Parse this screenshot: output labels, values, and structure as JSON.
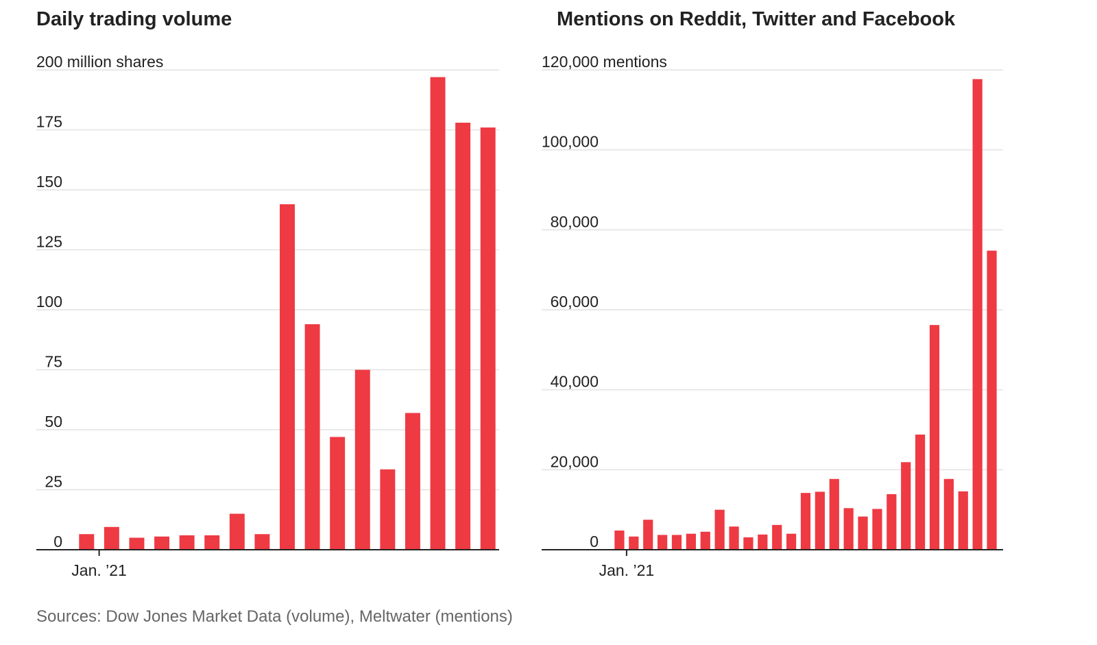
{
  "source_note": "Sources: Dow Jones Market Data (volume), Meltwater (mentions)",
  "colors": {
    "bar": "#ee3a43",
    "grid": "#e2e2e2",
    "axis": "#222222",
    "text": "#222222",
    "source": "#666666"
  },
  "chart_data": [
    {
      "type": "bar",
      "title": "Daily trading volume",
      "unit_label": "200 million shares",
      "ylim": [
        0,
        200
      ],
      "yticks": [
        0,
        25,
        50,
        75,
        100,
        125,
        150,
        175,
        200
      ],
      "ytick_labels": [
        "0",
        "25",
        "50",
        "75",
        "100",
        "125",
        "150",
        "175",
        "200 million shares"
      ],
      "x_tick_label": "Jan. ’21",
      "x_tick_after_bar": 1,
      "grid": true,
      "values": [
        6.5,
        9.5,
        5,
        5.5,
        6,
        6,
        15,
        6.5,
        144,
        94,
        47,
        75,
        33.5,
        57,
        197,
        178,
        176
      ]
    },
    {
      "type": "bar",
      "title": "Mentions on Reddit, Twitter and Facebook",
      "unit_label": "120,000 mentions",
      "ylim": [
        0,
        120000
      ],
      "yticks": [
        0,
        20000,
        40000,
        60000,
        80000,
        100000,
        120000
      ],
      "ytick_labels": [
        "0",
        "20,000",
        "40,000",
        "60,000",
        "80,000",
        "100,000",
        "120,000 mentions"
      ],
      "x_tick_label": "Jan. ’21",
      "x_tick_after_bar": 1,
      "grid": true,
      "values": [
        4800,
        3300,
        7500,
        3700,
        3700,
        4000,
        4500,
        10000,
        5800,
        3100,
        3800,
        6200,
        4000,
        14200,
        14500,
        17700,
        10400,
        8300,
        10200,
        13900,
        21900,
        28800,
        56200,
        17700,
        14600,
        117700,
        74800
      ]
    }
  ]
}
